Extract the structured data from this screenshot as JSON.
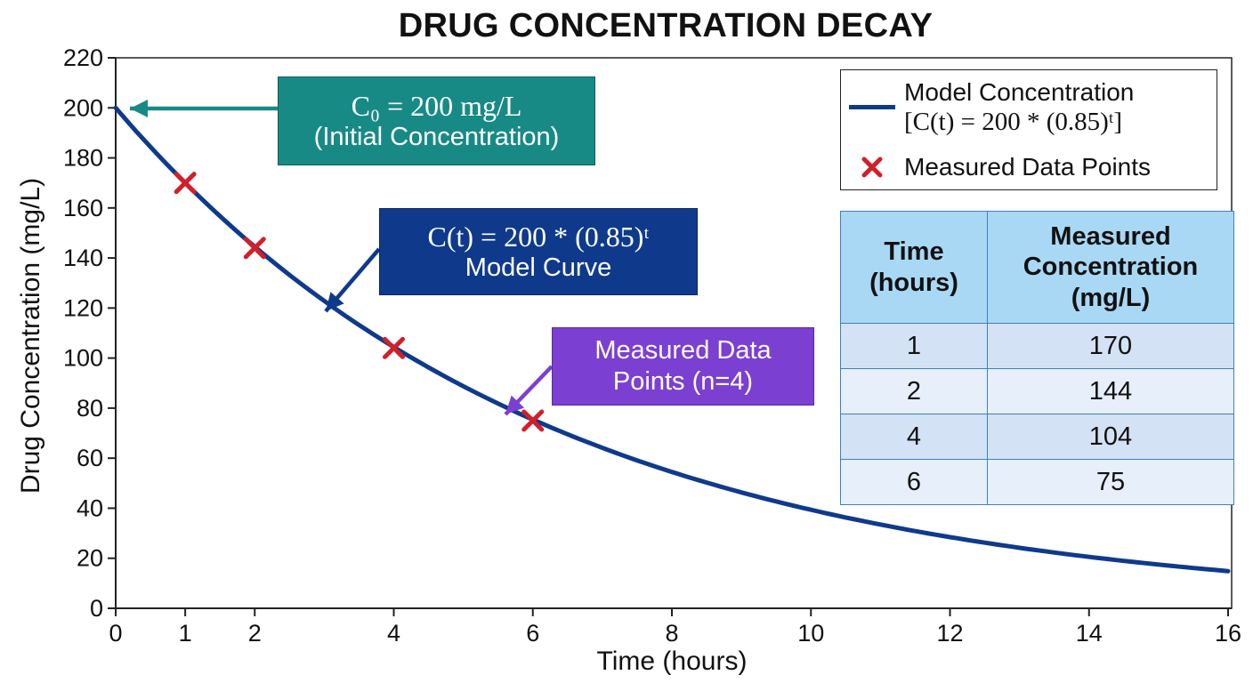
{
  "chart_data": {
    "type": "line",
    "title": "DRUG CONCENTRATION DECAY",
    "xlabel": "Time (hours)",
    "ylabel": "Drug Concentration (mg/L)",
    "xlim": [
      0,
      16
    ],
    "ylim": [
      0,
      220
    ],
    "x_ticks": [
      0,
      1,
      2,
      4,
      6,
      8,
      10,
      12,
      14,
      16
    ],
    "y_ticks": [
      0,
      20,
      40,
      60,
      80,
      100,
      120,
      140,
      160,
      180,
      200,
      220
    ],
    "grid": false,
    "legend_position": "top-right",
    "series": [
      {
        "name": "Model Concentration",
        "kind": "line",
        "color": "#0f3a8c",
        "model": {
          "initial": 200,
          "base": 0.85
        },
        "x": [
          0,
          1,
          2,
          3,
          4,
          5,
          6,
          7,
          8,
          9,
          10,
          11,
          12,
          13,
          14,
          15,
          16
        ],
        "values": [
          200,
          170,
          144.5,
          122.8,
          104.4,
          88.7,
          75.4,
          64.1,
          54.5,
          46.3,
          39.4,
          33.5,
          28.4,
          24.2,
          20.6,
          17.5,
          14.8
        ]
      },
      {
        "name": "Measured Data Points",
        "kind": "marker",
        "marker": "x",
        "color": "#d0202a",
        "x": [
          1,
          2,
          4,
          6
        ],
        "values": [
          170,
          144,
          104,
          75
        ]
      }
    ],
    "legend": {
      "line_label": "Model Concentration",
      "line_formula": "[C(t) = 200 * (0.85)ᵗ]",
      "marker_label": "Measured Data Points"
    },
    "annotations": {
      "initial": {
        "formula": "C₀ = 200 mg/L",
        "text": "(Initial Concentration)",
        "color": "#188a86"
      },
      "model": {
        "formula": "C(t) = 200 * (0.85)ᵗ",
        "text": "Model Curve",
        "color": "#0f3a8c"
      },
      "points": {
        "line1": "Measured Data",
        "line2": "Points (n=4)",
        "color": "#7b3fd1"
      }
    },
    "table": {
      "headers": [
        [
          "Time",
          "(hours)"
        ],
        [
          "Measured",
          "Concentration",
          "(mg/L)"
        ]
      ],
      "rows": [
        [
          "1",
          "170"
        ],
        [
          "2",
          "144"
        ],
        [
          "4",
          "104"
        ],
        [
          "6",
          "75"
        ]
      ]
    }
  }
}
